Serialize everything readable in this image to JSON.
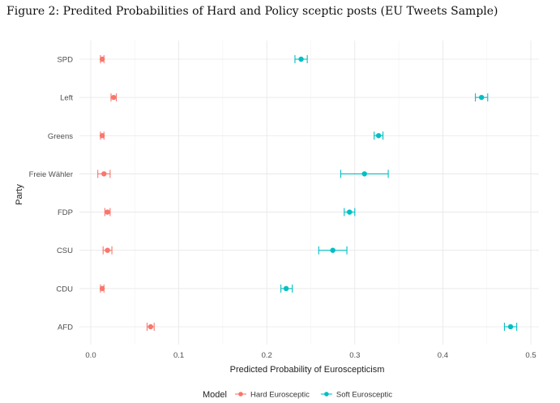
{
  "figure_title": "Figure 2: Predited Probabilities of Hard and Policy sceptic posts (EU Tweets Sample)",
  "chart_data": {
    "type": "scatter",
    "orientation": "horizontal-errorbars",
    "xlabel": "Predicted Probability of Euroscepticism",
    "ylabel": "Party",
    "xlim": [
      0,
      0.5
    ],
    "x_ticks": [
      0.0,
      0.1,
      0.2,
      0.3,
      0.4,
      0.5
    ],
    "x_tick_labels": [
      "0.0",
      "0.1",
      "0.2",
      "0.3",
      "0.4",
      "0.5"
    ],
    "categories": [
      "SPD",
      "Left",
      "Greens",
      "Freie Wähler",
      "FDP",
      "CSU",
      "CDU",
      "AFD"
    ],
    "grid": true,
    "legend": {
      "title": "Model",
      "position": "bottom"
    },
    "series": [
      {
        "name": "Hard Eurosceptic",
        "color": "#F8766D",
        "points": [
          {
            "party": "SPD",
            "estimate": 0.013,
            "lower": 0.011,
            "upper": 0.015
          },
          {
            "party": "Left",
            "estimate": 0.026,
            "lower": 0.023,
            "upper": 0.029
          },
          {
            "party": "Greens",
            "estimate": 0.013,
            "lower": 0.011,
            "upper": 0.015
          },
          {
            "party": "Freie Wähler",
            "estimate": 0.015,
            "lower": 0.008,
            "upper": 0.022
          },
          {
            "party": "FDP",
            "estimate": 0.019,
            "lower": 0.016,
            "upper": 0.022
          },
          {
            "party": "CSU",
            "estimate": 0.019,
            "lower": 0.014,
            "upper": 0.024
          },
          {
            "party": "CDU",
            "estimate": 0.013,
            "lower": 0.011,
            "upper": 0.015
          },
          {
            "party": "AFD",
            "estimate": 0.068,
            "lower": 0.064,
            "upper": 0.072
          }
        ]
      },
      {
        "name": "Soft Eurosceptic",
        "color": "#00BFC4",
        "points": [
          {
            "party": "SPD",
            "estimate": 0.239,
            "lower": 0.232,
            "upper": 0.246
          },
          {
            "party": "Left",
            "estimate": 0.444,
            "lower": 0.437,
            "upper": 0.451
          },
          {
            "party": "Greens",
            "estimate": 0.327,
            "lower": 0.322,
            "upper": 0.332
          },
          {
            "party": "Freie Wähler",
            "estimate": 0.311,
            "lower": 0.284,
            "upper": 0.338
          },
          {
            "party": "FDP",
            "estimate": 0.294,
            "lower": 0.288,
            "upper": 0.3
          },
          {
            "party": "CSU",
            "estimate": 0.275,
            "lower": 0.259,
            "upper": 0.291
          },
          {
            "party": "CDU",
            "estimate": 0.222,
            "lower": 0.216,
            "upper": 0.229
          },
          {
            "party": "AFD",
            "estimate": 0.477,
            "lower": 0.47,
            "upper": 0.484
          }
        ]
      }
    ]
  }
}
